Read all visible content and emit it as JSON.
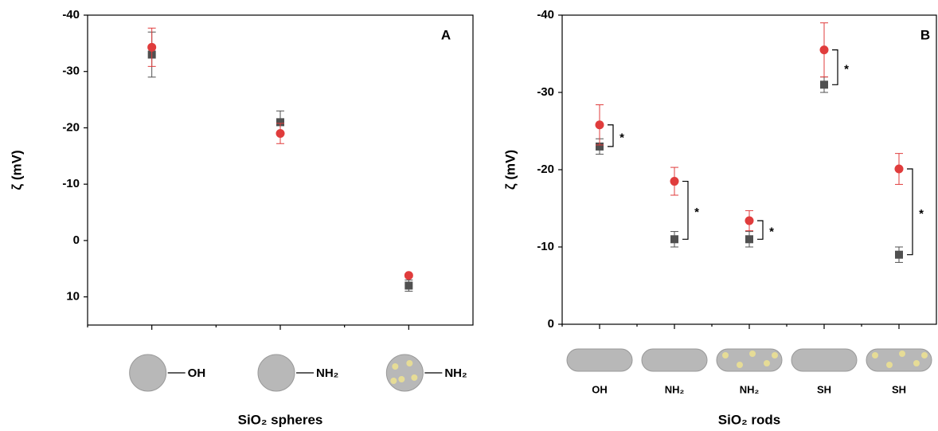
{
  "chart_data": [
    {
      "type": "scatter",
      "title": "A",
      "y_label": "ζ (mV)",
      "x_label": "SiO₂ spheres",
      "categories": [
        "OH",
        "NH₂",
        "NH₂"
      ],
      "ylim": [
        -40,
        15
      ],
      "yticks": [
        -40,
        -30,
        -20,
        -10,
        0,
        10
      ],
      "series": [
        {
          "color": "#505050",
          "marker": "square",
          "values": [
            -33,
            -21,
            8
          ],
          "errors": [
            4,
            2,
            1
          ]
        },
        {
          "color": "#e03c3c",
          "marker": "circle",
          "values": [
            -34.3,
            -19,
            6.2
          ],
          "errors": [
            3.4,
            1.8,
            0.3
          ]
        }
      ]
    },
    {
      "type": "scatter",
      "title": "B",
      "y_label": "ζ (mV)",
      "x_label": "SiO₂ rods",
      "categories": [
        "OH",
        "NH₂",
        "NH₂",
        "SH",
        "SH"
      ],
      "ylim": [
        -40,
        0
      ],
      "yticks": [
        -40,
        -30,
        -20,
        -10,
        0
      ],
      "series": [
        {
          "color": "#505050",
          "marker": "square",
          "values": [
            -23,
            -11,
            -11,
            -31,
            -9
          ],
          "errors": [
            1,
            1,
            1,
            1,
            1
          ]
        },
        {
          "color": "#e03c3c",
          "marker": "circle",
          "values": [
            -25.8,
            -18.5,
            -13.4,
            -35.5,
            -20.1
          ],
          "errors": [
            2.6,
            1.8,
            1.3,
            3.5,
            2
          ]
        }
      ],
      "significance": [
        "*",
        "*",
        "*",
        "*",
        "*"
      ]
    }
  ]
}
